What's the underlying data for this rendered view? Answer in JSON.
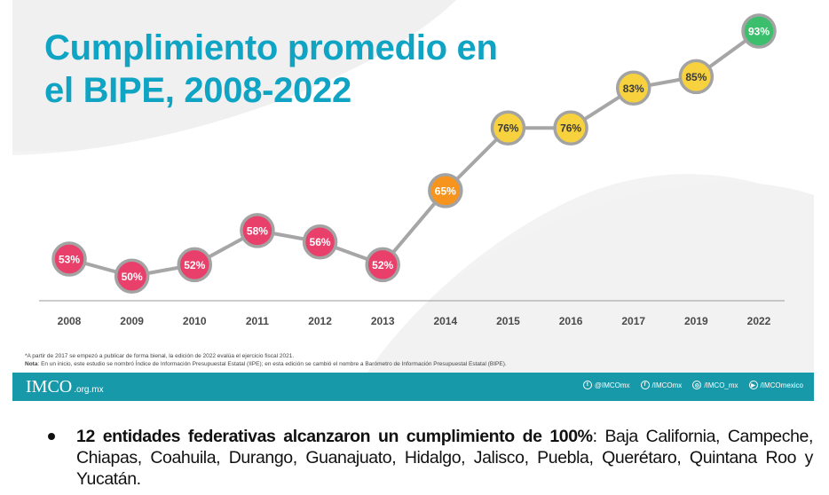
{
  "slide": {
    "title_line1": "Cumplimiento promedio en",
    "title_line2": "el BIPE, 2008-2022",
    "footnote_1": "*A partir de 2017 se empezó a publicar de forma bienal, la edición de 2022 evalúa el ejercicio fiscal 2021.",
    "footnote_2_label": "Nota",
    "footnote_2_text": ": En un inicio, este estudio se nombró Índice de Información Presupuestal Estatal (IIPE); en esta edición se cambió el nombre a Barómetro de Información Presupuestal Estatal (BIPE).",
    "footer": {
      "logo_text": "IMCO",
      "logo_domain": ".org.mx",
      "socials": [
        {
          "icon": "twitter-icon",
          "glyph": "t",
          "label": "@IMCOmx"
        },
        {
          "icon": "facebook-icon",
          "glyph": "f",
          "label": "/IMCOmx"
        },
        {
          "icon": "instagram-icon",
          "glyph": "◎",
          "label": "/IMCO_mx"
        },
        {
          "icon": "youtube-icon",
          "glyph": "▶",
          "label": "/IMCOmexico"
        }
      ]
    }
  },
  "chart_data": {
    "type": "line",
    "title": "Cumplimiento promedio en el BIPE, 2008-2022",
    "xlabel": "",
    "ylabel": "",
    "categories": [
      "2008",
      "2009",
      "2010",
      "2011",
      "2012",
      "2013",
      "2014",
      "2015",
      "2016",
      "2017",
      "2019",
      "2022"
    ],
    "values": [
      53,
      50,
      52,
      58,
      56,
      52,
      65,
      76,
      76,
      83,
      85,
      93
    ],
    "labels": [
      "53%",
      "50%",
      "52%",
      "58%",
      "56%",
      "52%",
      "65%",
      "76%",
      "76%",
      "83%",
      "85%",
      "93%"
    ],
    "ylim": [
      45,
      95
    ],
    "grid": false,
    "colors": {
      "low": "#e8406b",
      "mid": "#f7941d",
      "high_yellow": "#f7d23e",
      "top": "#3cbf6c",
      "line": "#a6a6a6",
      "axis": "#999999"
    },
    "marker_colors": [
      "#e8406b",
      "#e8406b",
      "#e8406b",
      "#e8406b",
      "#e8406b",
      "#e8406b",
      "#f7941d",
      "#f7d23e",
      "#f7d23e",
      "#f7d23e",
      "#f7d23e",
      "#3cbf6c"
    ],
    "label_colors": [
      "#ffffff",
      "#ffffff",
      "#ffffff",
      "#ffffff",
      "#ffffff",
      "#ffffff",
      "#ffffff",
      "#3a3a3a",
      "#3a3a3a",
      "#3a3a3a",
      "#3a3a3a",
      "#ffffff"
    ]
  },
  "body": {
    "bullet_bold": "12 entidades federativas alcanzaron un cumplimiento de 100%",
    "bullet_rest": ": Baja California, Campeche, Chiapas, Coahuila, Durango, Guanajuato, Hidalgo, Jalisco, Puebla, Querétaro, Quintana Roo y Yucatán."
  }
}
